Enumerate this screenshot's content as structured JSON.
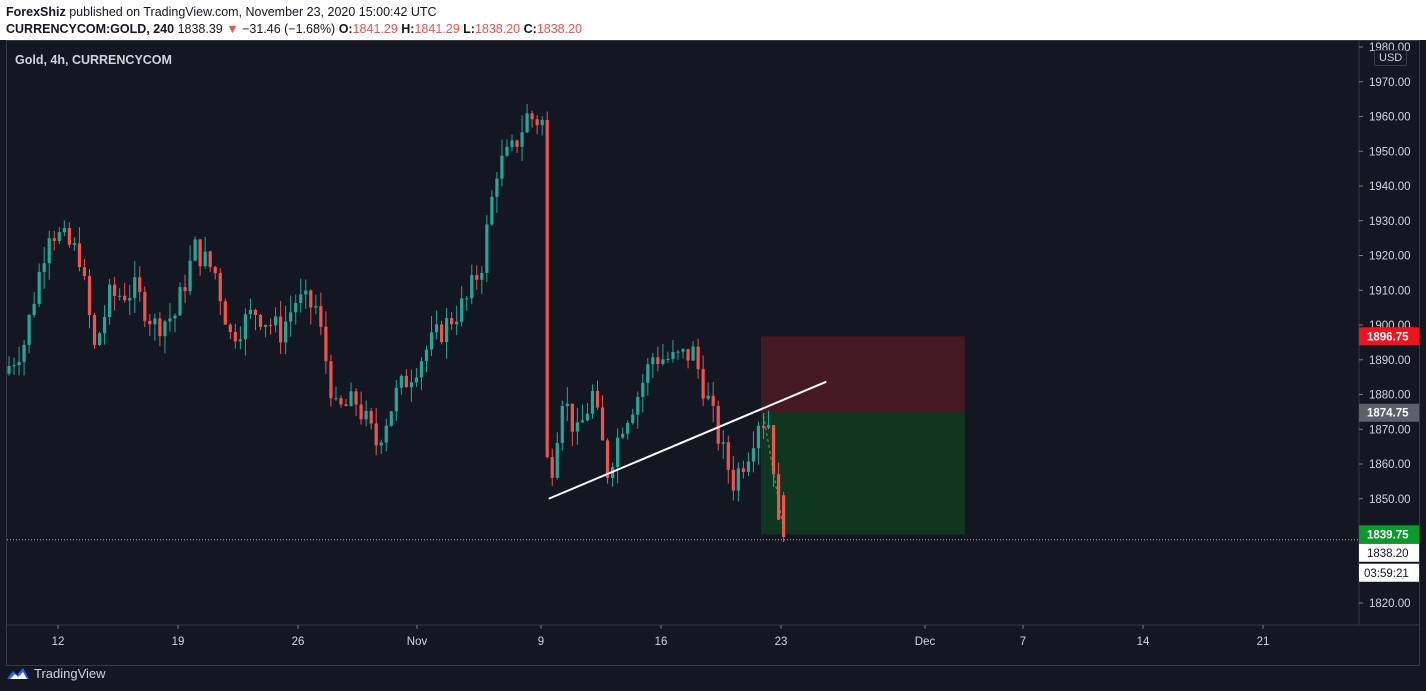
{
  "header": {
    "author": "ForexShiz",
    "published_text": "published on TradingView.com, November 23, 2020 15:00:42 UTC",
    "symbol": "CURRENCYCOM:GOLD, 240",
    "last": "1838.39",
    "change_arrow": "▼",
    "change": "−31.46 (−1.68%)",
    "o_label": "O:",
    "o_value": "1841.29",
    "h_label": "H:",
    "h_value": "1841.29",
    "l_label": "L:",
    "l_value": "1838.20",
    "c_label": "C:",
    "c_value": "1838.20"
  },
  "legend": "Gold, 4h, CURRENCYCOM",
  "currency": "USD",
  "footer": {
    "brand": "TradingView",
    "logo": "tradingview-logo-icon"
  },
  "colors": {
    "background": "#131722",
    "up": "#26a69a",
    "down": "#ef5350",
    "stop_zone": "#4a1a22",
    "target_zone": "#0f3b20",
    "trendline": "#ffffff",
    "stop_label": "#f0131e",
    "target_label": "#089b2a",
    "entry_label": "#5d606b"
  },
  "chart_data": {
    "type": "candlestick",
    "symbol": "Gold",
    "interval": "4h",
    "ylim": [
      1812,
      1982
    ],
    "y_ticks": [
      1820,
      1830,
      1840,
      1850,
      1860,
      1870,
      1880,
      1890,
      1900,
      1910,
      1920,
      1930,
      1940,
      1950,
      1960,
      1970,
      1980
    ],
    "y_tick_labels": [
      "1820.00",
      "1830.00",
      "1840.00",
      "1850.00",
      "1860.00",
      "1870.00",
      "1880.00",
      "1890.00",
      "1900.00",
      "1910.00",
      "1920.00",
      "1930.00",
      "1940.00",
      "1950.00",
      "1960.00",
      "1970.00",
      "1980.00"
    ],
    "x_ticks": [
      "12",
      "19",
      "26",
      "Nov",
      "9",
      "16",
      "23",
      "Dec",
      "7",
      "14",
      "21"
    ],
    "price_anchors": [
      {
        "t": 0,
        "p": 1886
      },
      {
        "t": 4,
        "p": 1895
      },
      {
        "t": 9,
        "p": 1928
      },
      {
        "t": 15,
        "p": 1920
      },
      {
        "t": 18,
        "p": 1893
      },
      {
        "t": 21,
        "p": 1908
      },
      {
        "t": 26,
        "p": 1910
      },
      {
        "t": 30,
        "p": 1900
      },
      {
        "t": 34,
        "p": 1903
      },
      {
        "t": 38,
        "p": 1922
      },
      {
        "t": 42,
        "p": 1915
      },
      {
        "t": 45,
        "p": 1897
      },
      {
        "t": 50,
        "p": 1904
      },
      {
        "t": 55,
        "p": 1898
      },
      {
        "t": 58,
        "p": 1907
      },
      {
        "t": 62,
        "p": 1905
      },
      {
        "t": 66,
        "p": 1875
      },
      {
        "t": 70,
        "p": 1878
      },
      {
        "t": 74,
        "p": 1866
      },
      {
        "t": 78,
        "p": 1880
      },
      {
        "t": 84,
        "p": 1893
      },
      {
        "t": 89,
        "p": 1902
      },
      {
        "t": 92,
        "p": 1907
      },
      {
        "t": 95,
        "p": 1918
      },
      {
        "t": 98,
        "p": 1945
      },
      {
        "t": 101,
        "p": 1950
      },
      {
        "t": 104,
        "p": 1960
      },
      {
        "t": 106,
        "p": 1959
      },
      {
        "t": 107,
        "p": 1862
      },
      {
        "t": 109,
        "p": 1860
      },
      {
        "t": 111,
        "p": 1880
      },
      {
        "t": 114,
        "p": 1868
      },
      {
        "t": 117,
        "p": 1880
      },
      {
        "t": 120,
        "p": 1858
      },
      {
        "t": 123,
        "p": 1872
      },
      {
        "t": 126,
        "p": 1880
      },
      {
        "t": 129,
        "p": 1891
      },
      {
        "t": 133,
        "p": 1890
      },
      {
        "t": 137,
        "p": 1892
      },
      {
        "t": 140,
        "p": 1878
      },
      {
        "t": 143,
        "p": 1863
      },
      {
        "t": 145,
        "p": 1855
      },
      {
        "t": 148,
        "p": 1864
      },
      {
        "t": 150,
        "p": 1873
      },
      {
        "t": 152,
        "p": 1872
      },
      {
        "t": 153,
        "p": 1860
      },
      {
        "t": 154,
        "p": 1841
      }
    ],
    "trendline": {
      "from": {
        "t": 107.3,
        "p": 1850
      },
      "to": {
        "t": 162.5,
        "p": 1883.7
      }
    },
    "position": {
      "side": "short",
      "start": 149.5,
      "end": 190,
      "entry": 1874.75,
      "stop": 1896.75,
      "target": 1839.75,
      "last": 1838.2
    },
    "price_labels": [
      {
        "label": "1896.75",
        "value": 1896.75,
        "kind": "stop"
      },
      {
        "label": "1874.75",
        "value": 1874.75,
        "kind": "entry"
      },
      {
        "label": "1839.75",
        "value": 1839.75,
        "kind": "target"
      },
      {
        "label": "1838.20",
        "value": 1838.2,
        "kind": "last"
      }
    ],
    "countdown": "03:59:21"
  }
}
